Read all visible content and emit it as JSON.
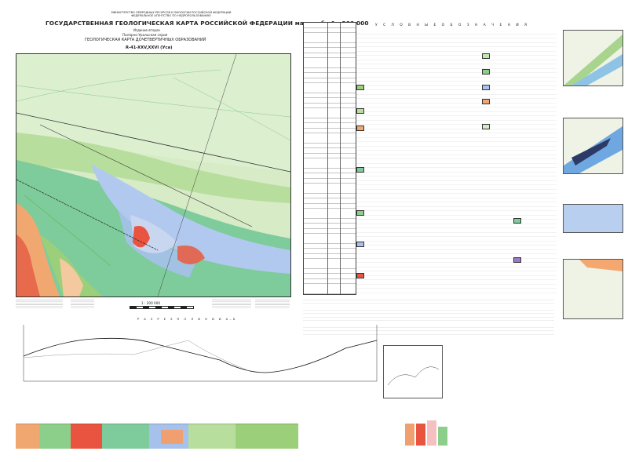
{
  "header": {
    "ministry": "МИНИСТЕРСТВО ПРИРОДНЫХ РЕСУРСОВ И ЭКОЛОГИИ РОССИЙСКОЙ ФЕДЕРАЦИИ",
    "agency": "ФЕДЕРАЛЬНОЕ АГЕНТСТВО ПО НЕДРОПОЛЬЗОВАНИЮ",
    "title": "ГОСУДАРСТВЕННАЯ ГЕОЛОГИЧЕСКАЯ КАРТА РОССИЙСКОЙ ФЕДЕРАЦИИ масштаба 1 : 200 000",
    "edition": "Издание второе",
    "series": "Полярно-Уральская серия",
    "map_type": "ГЕОЛОГИЧЕСКАЯ КАРТА ДОЧЕТВЕРТИЧНЫХ ОБРАЗОВАНИЙ",
    "sheet": "R-41-XXV,XXVI (Уса)"
  },
  "scale": {
    "label": "1 : 200 000"
  },
  "legend": {
    "heading": "У С Л О В Н Ы Е   О Б О З Н А Ч Е Н И Я"
  },
  "profile": {
    "title": "Р А З Р Е З   П О   Л И Н И И   А–Б"
  },
  "colors": {
    "map_bg": "#c8e6c0",
    "green_light": "#b9df9f",
    "green_mid": "#8ccf8a",
    "teal": "#6fc6a6",
    "orange": "#f0a070",
    "red": "#e05040",
    "blue": "#a8c4ee",
    "pink": "#f4c0c0",
    "purple": "#9b7bc3",
    "grey": "#9aa0a6"
  }
}
